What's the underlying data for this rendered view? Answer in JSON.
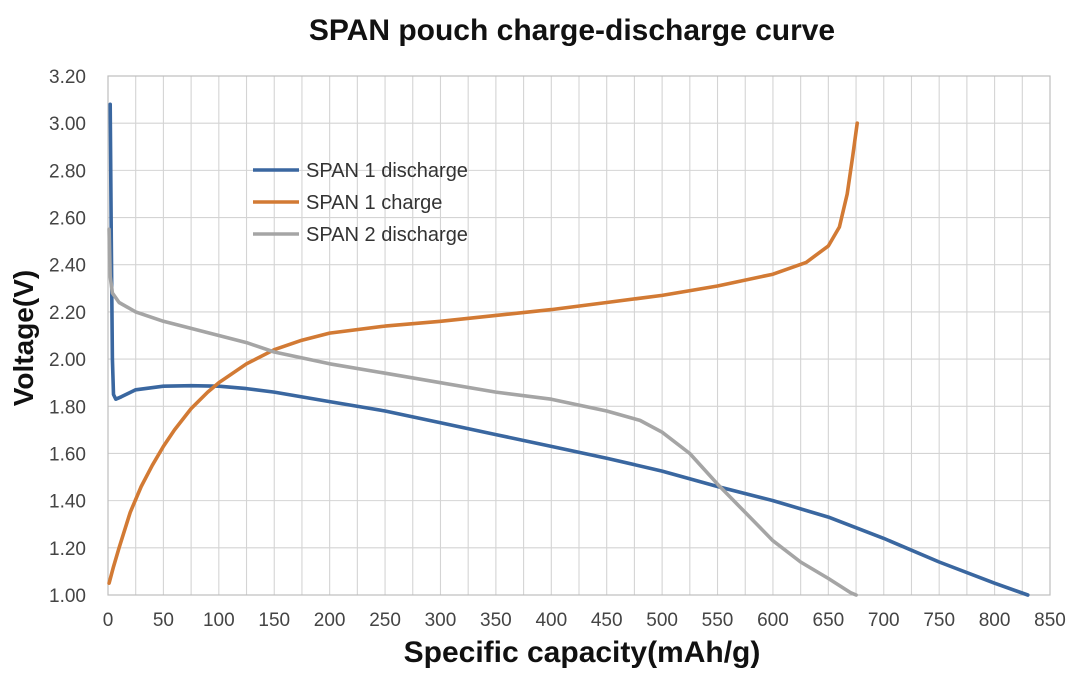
{
  "chart_data": {
    "type": "line",
    "title": "SPAN pouch charge-discharge curve",
    "xlabel": "Specific capacity(mAh/g)",
    "ylabel": "Voltage(V)",
    "xlim": [
      0,
      850
    ],
    "ylim": [
      1.0,
      3.2
    ],
    "x_ticks": [
      "0",
      "50",
      "100",
      "150",
      "200",
      "250",
      "300",
      "350",
      "400",
      "450",
      "500",
      "550",
      "600",
      "650",
      "700",
      "750",
      "800",
      "850"
    ],
    "y_ticks": [
      "1.00",
      "1.20",
      "1.40",
      "1.60",
      "1.80",
      "2.00",
      "2.20",
      "2.40",
      "2.60",
      "2.80",
      "3.00",
      "3.20"
    ],
    "x_minor_grid_step": 25,
    "grid": true,
    "legend_position": "upper-left inside plot",
    "series": [
      {
        "name": "SPAN 1 discharge",
        "color": "#3A67A0",
        "points": [
          [
            2,
            3.08
          ],
          [
            3,
            2.5
          ],
          [
            4,
            2.0
          ],
          [
            5,
            1.85
          ],
          [
            7,
            1.83
          ],
          [
            12,
            1.84
          ],
          [
            25,
            1.87
          ],
          [
            50,
            1.885
          ],
          [
            75,
            1.887
          ],
          [
            100,
            1.885
          ],
          [
            125,
            1.875
          ],
          [
            150,
            1.86
          ],
          [
            200,
            1.82
          ],
          [
            250,
            1.78
          ],
          [
            300,
            1.73
          ],
          [
            350,
            1.68
          ],
          [
            400,
            1.63
          ],
          [
            450,
            1.58
          ],
          [
            500,
            1.525
          ],
          [
            550,
            1.46
          ],
          [
            600,
            1.4
          ],
          [
            650,
            1.33
          ],
          [
            700,
            1.24
          ],
          [
            750,
            1.14
          ],
          [
            800,
            1.05
          ],
          [
            830,
            1.0
          ]
        ]
      },
      {
        "name": "SPAN 1 charge",
        "color": "#D27A34",
        "points": [
          [
            1,
            1.05
          ],
          [
            5,
            1.12
          ],
          [
            10,
            1.2
          ],
          [
            20,
            1.35
          ],
          [
            30,
            1.46
          ],
          [
            40,
            1.55
          ],
          [
            50,
            1.63
          ],
          [
            60,
            1.7
          ],
          [
            75,
            1.79
          ],
          [
            90,
            1.86
          ],
          [
            100,
            1.9
          ],
          [
            125,
            1.98
          ],
          [
            150,
            2.04
          ],
          [
            175,
            2.08
          ],
          [
            200,
            2.11
          ],
          [
            250,
            2.14
          ],
          [
            300,
            2.16
          ],
          [
            350,
            2.185
          ],
          [
            400,
            2.21
          ],
          [
            450,
            2.24
          ],
          [
            500,
            2.27
          ],
          [
            550,
            2.31
          ],
          [
            600,
            2.36
          ],
          [
            630,
            2.41
          ],
          [
            650,
            2.48
          ],
          [
            660,
            2.56
          ],
          [
            667,
            2.7
          ],
          [
            672,
            2.86
          ],
          [
            676,
            3.0
          ]
        ]
      },
      {
        "name": "SPAN 2 discharge",
        "color": "#A5A5A5",
        "points": [
          [
            1,
            2.55
          ],
          [
            2,
            2.35
          ],
          [
            4,
            2.28
          ],
          [
            10,
            2.24
          ],
          [
            25,
            2.2
          ],
          [
            50,
            2.16
          ],
          [
            75,
            2.13
          ],
          [
            100,
            2.1
          ],
          [
            125,
            2.07
          ],
          [
            150,
            2.03
          ],
          [
            200,
            1.98
          ],
          [
            250,
            1.94
          ],
          [
            300,
            1.9
          ],
          [
            350,
            1.86
          ],
          [
            400,
            1.83
          ],
          [
            450,
            1.78
          ],
          [
            480,
            1.74
          ],
          [
            500,
            1.69
          ],
          [
            525,
            1.6
          ],
          [
            550,
            1.47
          ],
          [
            575,
            1.35
          ],
          [
            600,
            1.23
          ],
          [
            625,
            1.14
          ],
          [
            650,
            1.07
          ],
          [
            670,
            1.01
          ],
          [
            675,
            1.0
          ]
        ]
      }
    ]
  }
}
